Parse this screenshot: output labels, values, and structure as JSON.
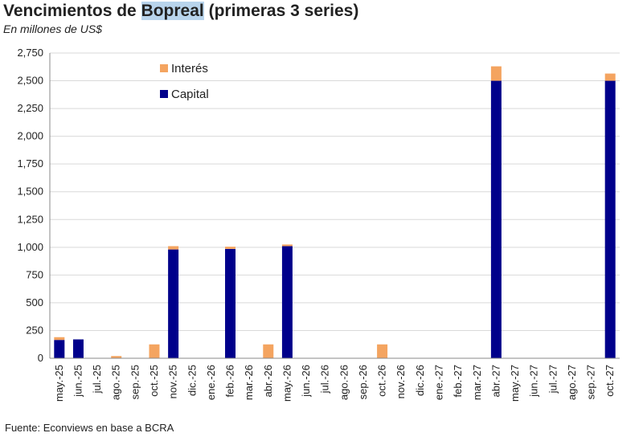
{
  "title_pre": "Vencimientos de ",
  "title_highlight": "Bopreal",
  "title_post": " (primeras 3 series)",
  "subtitle": "En millones de US$",
  "source": "Fuente: Econviews en base a BCRA",
  "colors": {
    "capital": "#00008b",
    "interes": "#f4a460",
    "grid": "#d9d9d9",
    "axis": "#888888"
  },
  "chart_data": {
    "type": "bar",
    "stacked": true,
    "categories": [
      "may.-25",
      "jun.-25",
      "jul.-25",
      "ago.-25",
      "sep.-25",
      "oct.-25",
      "nov.-25",
      "dic.-25",
      "ene.-26",
      "feb.-26",
      "mar.-26",
      "abr.-26",
      "may.-26",
      "jun.-26",
      "jul.-26",
      "ago.-26",
      "sep.-26",
      "oct.-26",
      "nov.-26",
      "dic.-26",
      "ene.-27",
      "feb.-27",
      "mar.-27",
      "abr.-27",
      "may.-27",
      "jun.-27",
      "jul.-27",
      "ago.-27",
      "sep.-27",
      "oct.-27"
    ],
    "series": [
      {
        "name": "Capital",
        "values": [
          165,
          170,
          0,
          0,
          0,
          0,
          980,
          0,
          0,
          985,
          0,
          0,
          1010,
          0,
          0,
          0,
          0,
          0,
          0,
          0,
          0,
          0,
          0,
          2500,
          0,
          0,
          0,
          0,
          0,
          2500
        ]
      },
      {
        "name": "Interés",
        "values": [
          25,
          0,
          0,
          20,
          0,
          125,
          30,
          0,
          0,
          20,
          0,
          125,
          15,
          0,
          0,
          0,
          0,
          125,
          0,
          0,
          0,
          0,
          0,
          130,
          0,
          0,
          0,
          0,
          0,
          65
        ]
      }
    ],
    "ylim": [
      0,
      2750
    ],
    "yticks": [
      "0",
      "250",
      "500",
      "750",
      "1,000",
      "1,250",
      "1,500",
      "1,750",
      "2,000",
      "2,250",
      "2,500",
      "2,750"
    ],
    "ytick_values": [
      0,
      250,
      500,
      750,
      1000,
      1250,
      1500,
      1750,
      2000,
      2250,
      2500,
      2750
    ],
    "grid": true,
    "legend_position": "top-left"
  }
}
